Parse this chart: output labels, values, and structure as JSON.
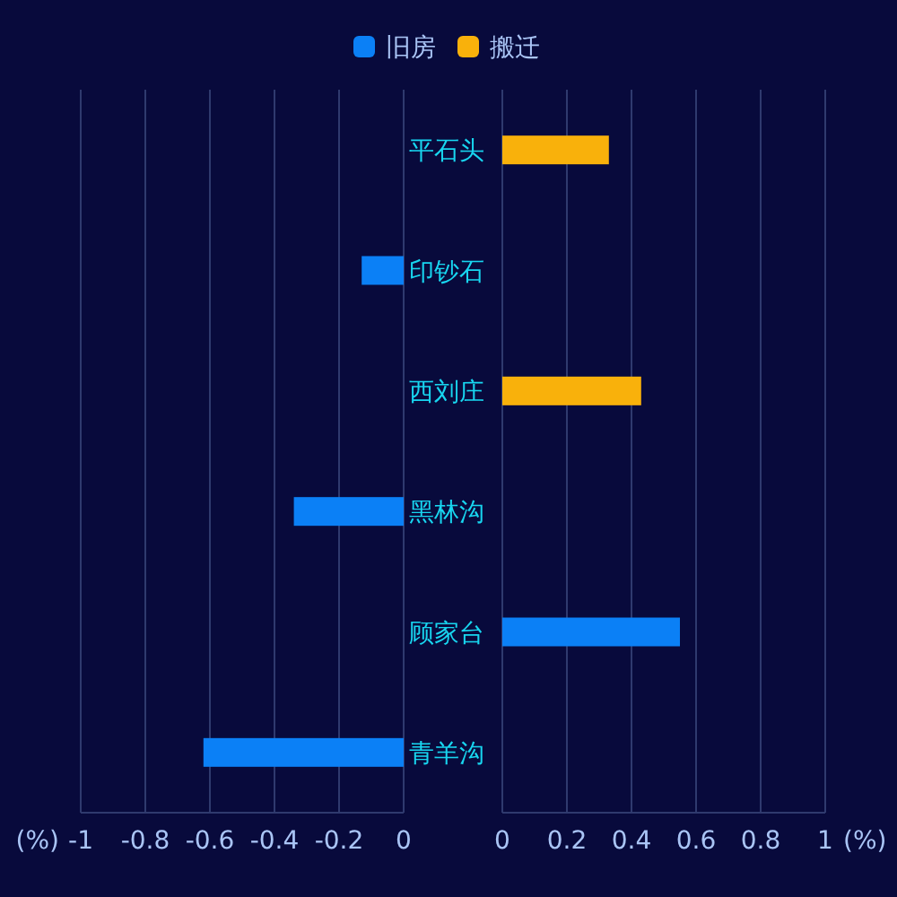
{
  "chart_data": [
    {
      "type": "bar",
      "orientation": "horizontal",
      "categories": [
        "平石头",
        "印钞石",
        "西刘庄",
        "黑林沟",
        "顾家台",
        "青羊沟"
      ],
      "series": [
        {
          "name": "旧房",
          "color": "#0b80f6",
          "values": [
            null,
            -0.13,
            null,
            -0.34,
            null,
            -0.62
          ]
        }
      ],
      "xlim": [
        -1,
        0
      ],
      "xticks": [
        -1,
        -0.8,
        -0.6,
        -0.4,
        -0.2,
        0
      ],
      "xlabel": "(%)",
      "grid": "x",
      "legend": "top"
    },
    {
      "type": "bar",
      "orientation": "horizontal",
      "series": [
        {
          "name": "搬迁",
          "color": "#f9b10b",
          "colors": [
            "#f9b10b",
            null,
            "#f9b10b",
            null,
            "#0b80f6",
            null
          ],
          "values": [
            0.33,
            null,
            0.43,
            null,
            0.55,
            null
          ]
        }
      ],
      "xlim": [
        0,
        1
      ],
      "xticks": [
        0,
        0.2,
        0.4,
        0.6,
        0.8,
        1
      ],
      "xlabel": "(%)",
      "grid": "x",
      "legend": "top"
    }
  ]
}
